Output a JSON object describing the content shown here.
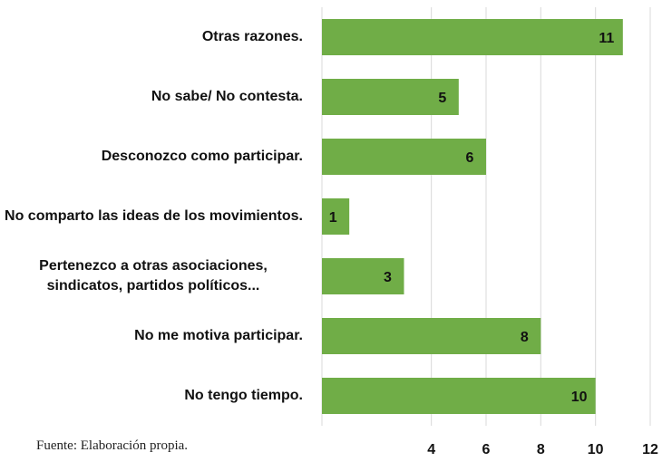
{
  "chart_data": {
    "type": "bar",
    "orientation": "horizontal",
    "categories": [
      "Otras razones.",
      "No sabe/ No contesta.",
      "Desconozco como participar.",
      "No comparto las ideas de los movimientos.",
      "Pertenezco a otras asociaciones, sindicatos, partidos políticos...",
      "No me motiva participar.",
      "No tengo tiempo."
    ],
    "values": [
      11,
      5,
      6,
      1,
      3,
      8,
      10
    ],
    "color": "#70ad47",
    "xlim": [
      0,
      12
    ],
    "xticks": [
      4,
      6,
      8,
      10,
      12
    ],
    "grid": true,
    "source": "Fuente: Elaboración propia."
  }
}
